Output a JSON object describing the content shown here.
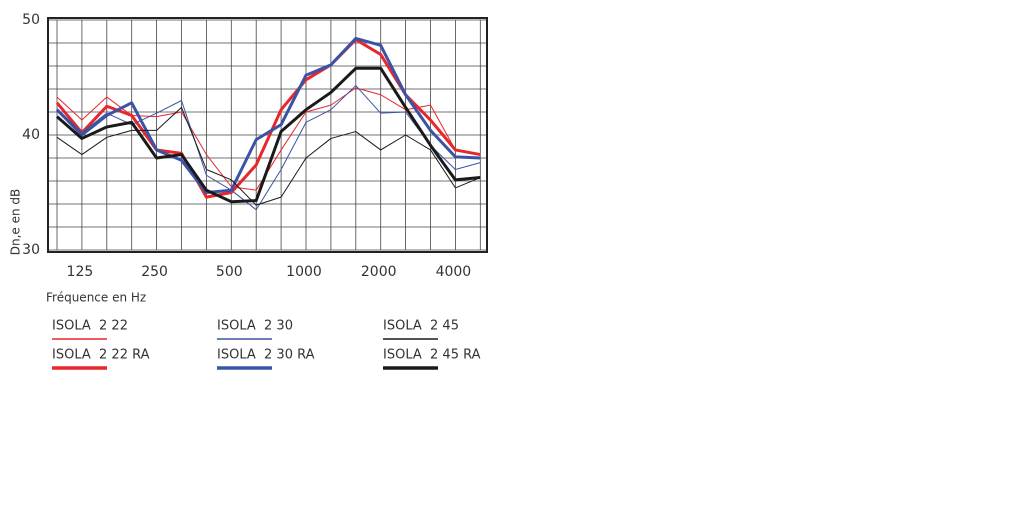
{
  "chart_data": {
    "type": "line",
    "y_label": "Dn,e en dB",
    "x_label": "Fréquence en Hz",
    "categories": [
      null,
      "125",
      null,
      null,
      "250",
      null,
      null,
      "500",
      null,
      null,
      "1000",
      null,
      null,
      "2000",
      null,
      null,
      "4000",
      null
    ],
    "ylim": [
      30,
      50
    ],
    "yticks": [
      30,
      40,
      50
    ],
    "grid_yticks": [
      30,
      32,
      34,
      36,
      38,
      40,
      42,
      44,
      46,
      48,
      50
    ],
    "grid": true,
    "series": [
      {
        "name": "ISOLA  2 22",
        "color": "#e8262b",
        "width": 1,
        "values": [
          43.3,
          41.3,
          43.3,
          41.7,
          41.6,
          42.0,
          38.3,
          35.5,
          35.2,
          38.7,
          42.0,
          42.6,
          44.1,
          43.5,
          42.2,
          42.6,
          38.7,
          38.3
        ]
      },
      {
        "name": "ISOLA  2 22 RA",
        "color": "#e8262b",
        "width": 3,
        "values": [
          42.8,
          40.2,
          42.5,
          41.7,
          38.7,
          38.4,
          34.6,
          35.0,
          37.4,
          42.2,
          44.8,
          46.1,
          48.3,
          47.0,
          43.5,
          41.3,
          38.7,
          38.3
        ]
      },
      {
        "name": "ISOLA  2 30",
        "color": "#3a53a4",
        "width": 1,
        "values": [
          42.3,
          40.2,
          41.9,
          40.9,
          41.9,
          43.0,
          36.5,
          35.2,
          33.5,
          37.0,
          41.1,
          42.2,
          44.3,
          41.9,
          42.0,
          39.1,
          37.0,
          37.6
        ]
      },
      {
        "name": "ISOLA  2 30 RA",
        "color": "#3a53a4",
        "width": 3,
        "values": [
          42.2,
          40.0,
          41.7,
          42.8,
          38.7,
          37.8,
          35.0,
          35.2,
          39.6,
          40.9,
          45.2,
          46.1,
          48.4,
          47.8,
          43.5,
          40.4,
          38.1,
          38.0
        ]
      },
      {
        "name": "ISOLA  2 45",
        "color": "#1a1a1a",
        "width": 1,
        "values": [
          39.8,
          38.3,
          39.8,
          40.4,
          40.4,
          42.4,
          37.0,
          36.1,
          33.9,
          34.6,
          38.0,
          39.7,
          40.3,
          38.7,
          40.0,
          38.7,
          35.4,
          36.3
        ]
      },
      {
        "name": "ISOLA  2 45 RA",
        "color": "#1a1a1a",
        "width": 3,
        "values": [
          41.6,
          39.7,
          40.7,
          41.1,
          38.0,
          38.3,
          35.2,
          34.2,
          34.3,
          40.3,
          42.2,
          43.7,
          45.8,
          45.8,
          42.4,
          39.1,
          36.1,
          36.3
        ]
      }
    ]
  }
}
